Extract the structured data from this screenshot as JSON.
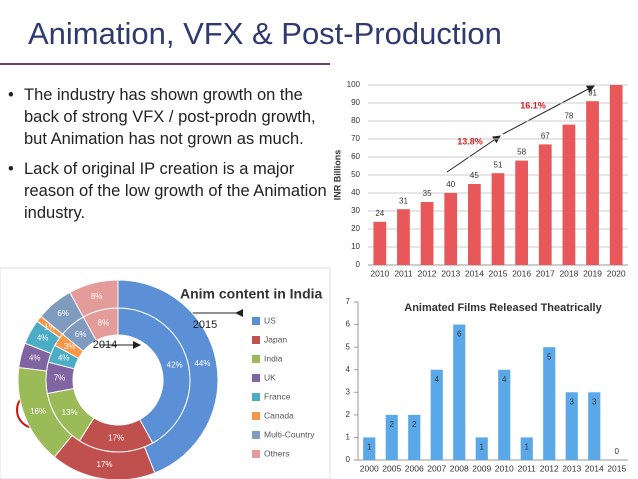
{
  "title": "Animation, VFX & Post-Production",
  "bullets": [
    "The industry has shown growth on the back of strong VFX / post-prodn growth, but Animation has not grown as much.",
    "Lack of original IP creation is a major reason of the low growth of the Animation industry."
  ],
  "chart_data": [
    {
      "type": "bar",
      "ylabel": "INR Billions",
      "categories": [
        "2010",
        "2011",
        "2012",
        "2013",
        "2014",
        "2015",
        "2016",
        "2017",
        "2018",
        "2019",
        "2020"
      ],
      "values": [
        24,
        31,
        35,
        40,
        45,
        51,
        58,
        67,
        78,
        91,
        100
      ],
      "value_labels": [
        "24",
        "31",
        "35",
        "40",
        "45",
        "51",
        "58",
        "67",
        "78",
        "91",
        null
      ],
      "color": "#e8585a",
      "ylim": [
        0,
        100
      ],
      "yticks": [
        0,
        10,
        20,
        30,
        40,
        50,
        60,
        70,
        80,
        90,
        100
      ],
      "grid": true,
      "annotations": [
        "13.8%",
        "16.1%"
      ]
    },
    {
      "type": "donut",
      "title": "Anim content in India",
      "categories": [
        "US",
        "Japan",
        "India",
        "UK",
        "France",
        "Canada",
        "Multi-Country",
        "Others"
      ],
      "colors": [
        "#5b8fd6",
        "#c0504d",
        "#9bbb59",
        "#8064a2",
        "#4bacc6",
        "#f79646",
        "#7f9cbf",
        "#e39c9a"
      ],
      "series": [
        {
          "name": "2014",
          "values": [
            42,
            17,
            13,
            7,
            4,
            3,
            6,
            8
          ],
          "value_labels": [
            "42%",
            "17%",
            "13%",
            "7%",
            "4%",
            "3%",
            "6%",
            "8%"
          ]
        },
        {
          "name": "2015",
          "values": [
            44,
            17,
            16,
            4,
            4,
            1,
            6,
            8
          ],
          "value_labels": [
            "44%",
            "17%",
            "16%",
            "4%",
            "4%",
            "1%",
            "6%",
            "8%"
          ]
        }
      ]
    },
    {
      "type": "bar",
      "title": "Animated Films Released Theatrically",
      "categories": [
        "2000",
        "2005",
        "2006",
        "2007",
        "2008",
        "2009",
        "2010",
        "2011",
        "2012",
        "2013",
        "2014",
        "2015"
      ],
      "values": [
        1,
        2,
        2,
        4,
        6,
        1,
        4,
        1,
        5,
        3,
        3,
        0
      ],
      "color": "#5aa8e8",
      "ylim": [
        0,
        7
      ],
      "yticks": [
        0,
        1,
        2,
        3,
        4,
        5,
        6,
        7
      ],
      "grid": false
    }
  ]
}
